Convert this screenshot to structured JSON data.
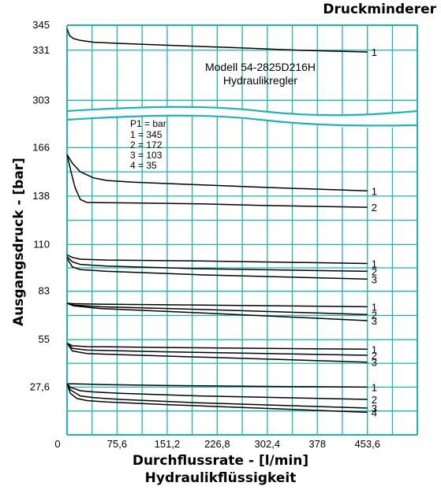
{
  "title": "Druckminderer",
  "chart_data": {
    "type": "line",
    "xlabel": "Durchflussrate - [l/min]",
    "xlabel_sub": "Hydraulikflüssigkeit",
    "ylabel": "Ausgangsdruck - [bar]",
    "x_ticks": [
      0,
      75.6,
      151.2,
      226.8,
      302.4,
      378,
      453.6
    ],
    "x_tick_labels": [
      "0",
      "75,6",
      "151,2",
      "226,8",
      "302,4",
      "378",
      "453,6"
    ],
    "xlim": [
      0,
      529
    ],
    "y_ticks_upper": [
      345,
      331,
      303
    ],
    "y_ticks_upper_labels": [
      "345",
      "331",
      "303"
    ],
    "ylim_upper": [
      293,
      345
    ],
    "y_ticks_lower": [
      27.6,
      55,
      83,
      110,
      138,
      166
    ],
    "y_ticks_lower_labels": [
      "27,6",
      "55",
      "83",
      "110",
      "138",
      "166"
    ],
    "ylim_lower": [
      0,
      183
    ],
    "axis_break": "between 303 and 183",
    "annotation_model": "Modell 54-2825D216H",
    "annotation_type": "Hydraulikregler",
    "legend_title": "P1 = bar",
    "legend_entries": [
      "1 = 345",
      "2 = 172",
      "3 = 103",
      "4 = 35"
    ],
    "series": [
      {
        "name": "1",
        "setpoint": 345,
        "panel": "upper",
        "x": [
          0,
          4,
          10,
          20,
          40,
          80,
          150,
          250,
          350,
          453.6
        ],
        "y": [
          343,
          339,
          337.5,
          336.5,
          335.5,
          334.8,
          333.8,
          332.5,
          331,
          330
        ]
      },
      {
        "name": "1",
        "setpoint": 166,
        "panel": "lower",
        "x": [
          0,
          8,
          20,
          40,
          60,
          100,
          200,
          300,
          453.6
        ],
        "y": [
          162,
          157,
          152,
          148.5,
          147,
          146,
          144.5,
          143,
          141
        ]
      },
      {
        "name": "2",
        "setpoint": 166,
        "panel": "lower",
        "x": [
          0,
          6,
          12,
          20,
          30,
          50,
          100,
          200,
          300,
          453.6
        ],
        "y": [
          162,
          152,
          143,
          136,
          134.3,
          134.2,
          134,
          133.5,
          132.5,
          131.5
        ]
      },
      {
        "name": "1",
        "setpoint": 110,
        "panel": "lower",
        "x": [
          0,
          8,
          20,
          60,
          200,
          453.6
        ],
        "y": [
          104,
          102.5,
          101.5,
          101,
          100.5,
          99
        ]
      },
      {
        "name": "2",
        "setpoint": 110,
        "panel": "lower",
        "x": [
          0,
          8,
          20,
          60,
          200,
          453.6
        ],
        "y": [
          103,
          100,
          98.5,
          97.5,
          96,
          94.5
        ]
      },
      {
        "name": "3",
        "setpoint": 110,
        "panel": "lower",
        "x": [
          0,
          8,
          20,
          60,
          200,
          453.6
        ],
        "y": [
          102,
          97,
          95.5,
          94.5,
          92.5,
          90
        ]
      },
      {
        "name": "1",
        "setpoint": 83,
        "panel": "lower",
        "x": [
          0,
          10,
          50,
          200,
          453.6
        ],
        "y": [
          76,
          75.8,
          75.5,
          75,
          74
        ]
      },
      {
        "name": "2",
        "setpoint": 83,
        "panel": "lower",
        "x": [
          0,
          10,
          50,
          200,
          453.6
        ],
        "y": [
          76,
          75,
          74,
          72.5,
          69.5
        ]
      },
      {
        "name": "3",
        "setpoint": 83,
        "panel": "lower",
        "x": [
          0,
          10,
          50,
          200,
          453.6
        ],
        "y": [
          76,
          74.5,
          73,
          70.5,
          66
        ]
      },
      {
        "name": "1",
        "setpoint": 55,
        "panel": "lower",
        "x": [
          0,
          8,
          30,
          150,
          453.6
        ],
        "y": [
          53,
          51.5,
          51,
          50.5,
          49.5
        ]
      },
      {
        "name": "2",
        "setpoint": 55,
        "panel": "lower",
        "x": [
          0,
          8,
          30,
          150,
          453.6
        ],
        "y": [
          53,
          50,
          49,
          48,
          46
        ]
      },
      {
        "name": "3",
        "setpoint": 55,
        "panel": "lower",
        "x": [
          0,
          8,
          30,
          150,
          453.6
        ],
        "y": [
          53,
          48.5,
          47,
          45.5,
          42
        ]
      },
      {
        "name": "1",
        "setpoint": 27.6,
        "panel": "lower",
        "x": [
          0,
          10,
          30,
          60,
          150,
          300,
          453.6
        ],
        "y": [
          29.5,
          29.5,
          29.3,
          29,
          28.5,
          28,
          27.6
        ]
      },
      {
        "name": "2",
        "setpoint": 27.6,
        "panel": "lower",
        "x": [
          0,
          5,
          20,
          40,
          80,
          200,
          453.6
        ],
        "y": [
          29.5,
          27.5,
          25.5,
          24.8,
          24,
          22.5,
          20.5
        ]
      },
      {
        "name": "3",
        "setpoint": 27.6,
        "panel": "lower",
        "x": [
          0,
          5,
          20,
          40,
          80,
          200,
          453.6
        ],
        "y": [
          29.5,
          26,
          22.5,
          21.5,
          20.5,
          18.5,
          15.5
        ]
      },
      {
        "name": "4",
        "setpoint": 27.6,
        "panel": "lower",
        "x": [
          0,
          5,
          15,
          30,
          60,
          150,
          453.6
        ],
        "y": [
          29.5,
          24,
          21,
          19.8,
          19,
          17.5,
          13
        ]
      }
    ],
    "grid": true,
    "grid_color": "#1fb3b3",
    "line_color": "#000000"
  }
}
